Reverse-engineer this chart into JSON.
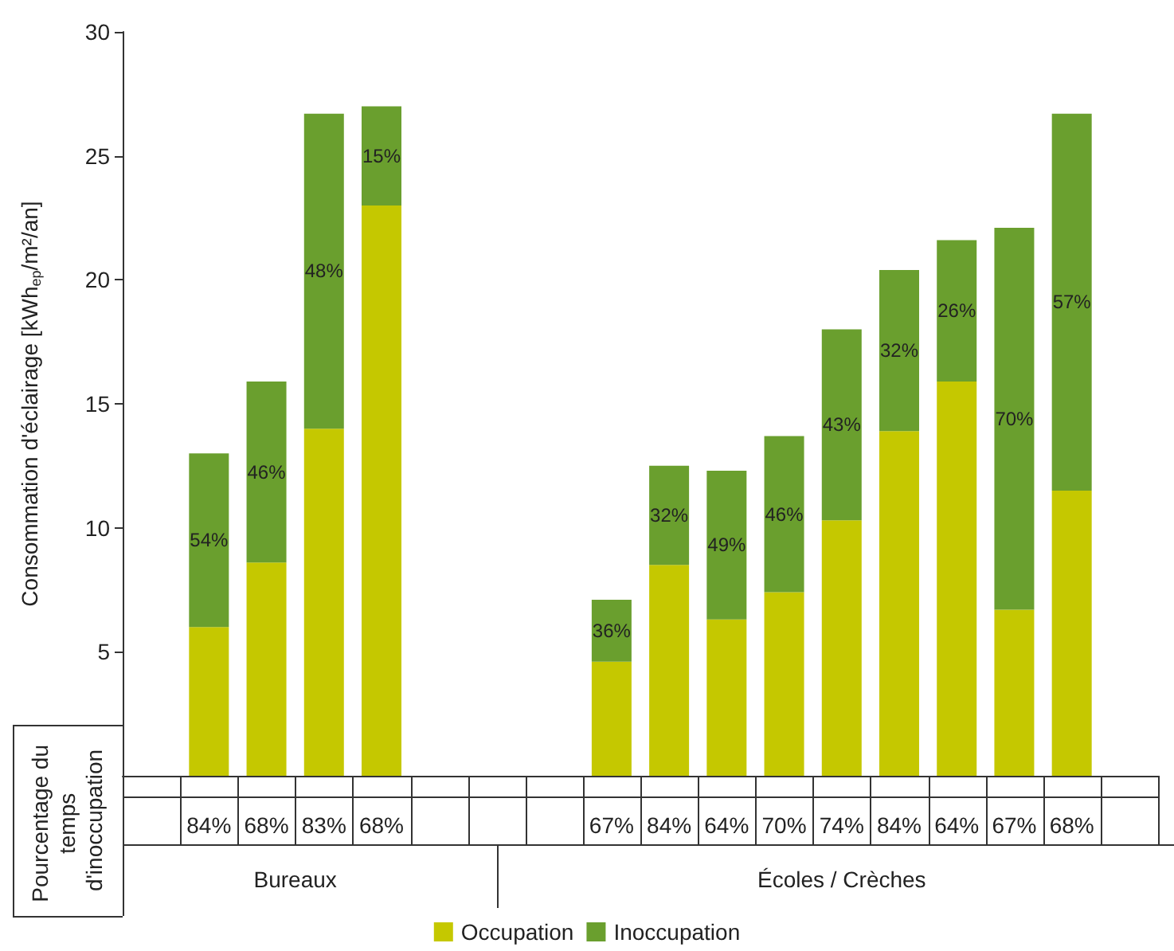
{
  "chart_data": {
    "type": "bar",
    "stacked": true,
    "ylabel": "Consommation d'éclairage [kWh$_{ep}$/m²/an]",
    "categories": [
      null,
      "84%",
      "68%",
      "83%",
      "68%",
      null,
      null,
      null,
      "67%",
      "84%",
      "64%",
      "70%",
      "74%",
      "84%",
      "64%",
      "67%",
      "68%",
      null
    ],
    "series": [
      {
        "name": "Occupation",
        "color": "#c5c800",
        "values": [
          null,
          6.0,
          8.6,
          14.0,
          23.0,
          null,
          null,
          null,
          4.6,
          8.5,
          6.3,
          7.4,
          10.3,
          13.9,
          15.9,
          6.7,
          11.5,
          null
        ]
      },
      {
        "name": "Inoccupation",
        "color": "#6a9f2e",
        "values": [
          null,
          7.0,
          7.3,
          12.7,
          4.0,
          null,
          null,
          null,
          2.5,
          4.0,
          6.0,
          6.3,
          7.7,
          6.5,
          5.7,
          15.4,
          15.2,
          null
        ]
      }
    ],
    "annotations": [
      "Pourcentage du temps d'inoccupation",
      "Bureaux",
      "Écoles / Crèches",
      "54%",
      "46%",
      "48%",
      "15%",
      "36%",
      "32%",
      "49%",
      "46%",
      "43%",
      "32%",
      "26%",
      "70%",
      "57%"
    ],
    "ylim": [
      0,
      30
    ],
    "yticks": [
      5,
      10,
      15,
      20,
      25,
      30
    ],
    "legend": "bottom",
    "grid": false
  }
}
